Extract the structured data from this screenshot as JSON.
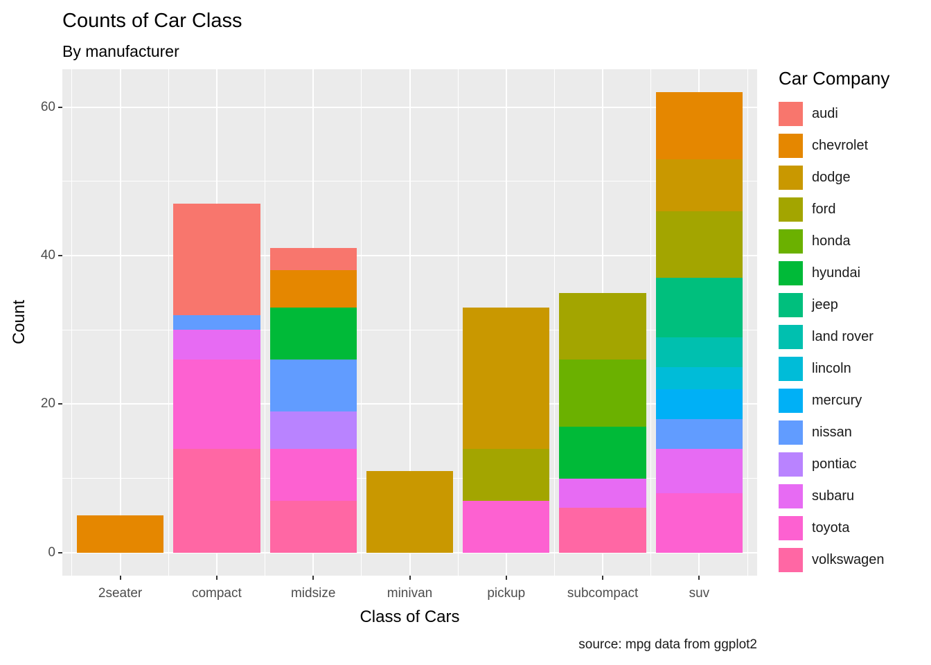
{
  "chart_data": {
    "type": "bar",
    "stacked": true,
    "title": "Counts of Car Class",
    "subtitle": "By manufacturer",
    "xlabel": "Class of Cars",
    "ylabel": "Count",
    "caption": "source: mpg data from ggplot2",
    "legend_title": "Car Company",
    "legend_position": "right",
    "grid": "on",
    "panel_fill": "#EBEBEB",
    "categories": [
      "2seater",
      "compact",
      "midsize",
      "minivan",
      "pickup",
      "subcompact",
      "suv"
    ],
    "ylim": [
      0,
      62
    ],
    "yticks": [
      0,
      20,
      40,
      60
    ],
    "yticks_minor": [
      10,
      30,
      50
    ],
    "series": [
      {
        "name": "audi",
        "color": "#F8766D",
        "values": [
          0,
          15,
          3,
          0,
          0,
          0,
          0
        ]
      },
      {
        "name": "chevrolet",
        "color": "#E58700",
        "values": [
          5,
          0,
          5,
          0,
          0,
          0,
          9
        ]
      },
      {
        "name": "dodge",
        "color": "#C99800",
        "values": [
          0,
          0,
          0,
          11,
          19,
          0,
          7
        ]
      },
      {
        "name": "ford",
        "color": "#A3A500",
        "values": [
          0,
          0,
          0,
          0,
          7,
          9,
          9
        ]
      },
      {
        "name": "honda",
        "color": "#6BB100",
        "values": [
          0,
          0,
          0,
          0,
          0,
          9,
          0
        ]
      },
      {
        "name": "hyundai",
        "color": "#00BA38",
        "values": [
          0,
          0,
          7,
          0,
          0,
          7,
          0
        ]
      },
      {
        "name": "jeep",
        "color": "#00BF7D",
        "values": [
          0,
          0,
          0,
          0,
          0,
          0,
          8
        ]
      },
      {
        "name": "land rover",
        "color": "#00C0AF",
        "values": [
          0,
          0,
          0,
          0,
          0,
          0,
          4
        ]
      },
      {
        "name": "lincoln",
        "color": "#00BCD8",
        "values": [
          0,
          0,
          0,
          0,
          0,
          0,
          3
        ]
      },
      {
        "name": "mercury",
        "color": "#00B0F6",
        "values": [
          0,
          0,
          0,
          0,
          0,
          0,
          4
        ]
      },
      {
        "name": "nissan",
        "color": "#619CFF",
        "values": [
          0,
          2,
          7,
          0,
          0,
          0,
          4
        ]
      },
      {
        "name": "pontiac",
        "color": "#B983FF",
        "values": [
          0,
          0,
          5,
          0,
          0,
          0,
          0
        ]
      },
      {
        "name": "subaru",
        "color": "#E76BF3",
        "values": [
          0,
          4,
          0,
          0,
          0,
          4,
          6
        ]
      },
      {
        "name": "toyota",
        "color": "#FD61D1",
        "values": [
          0,
          12,
          7,
          0,
          7,
          0,
          8
        ]
      },
      {
        "name": "volkswagen",
        "color": "#FF67A4",
        "values": [
          0,
          14,
          7,
          0,
          0,
          6,
          0
        ]
      }
    ]
  }
}
